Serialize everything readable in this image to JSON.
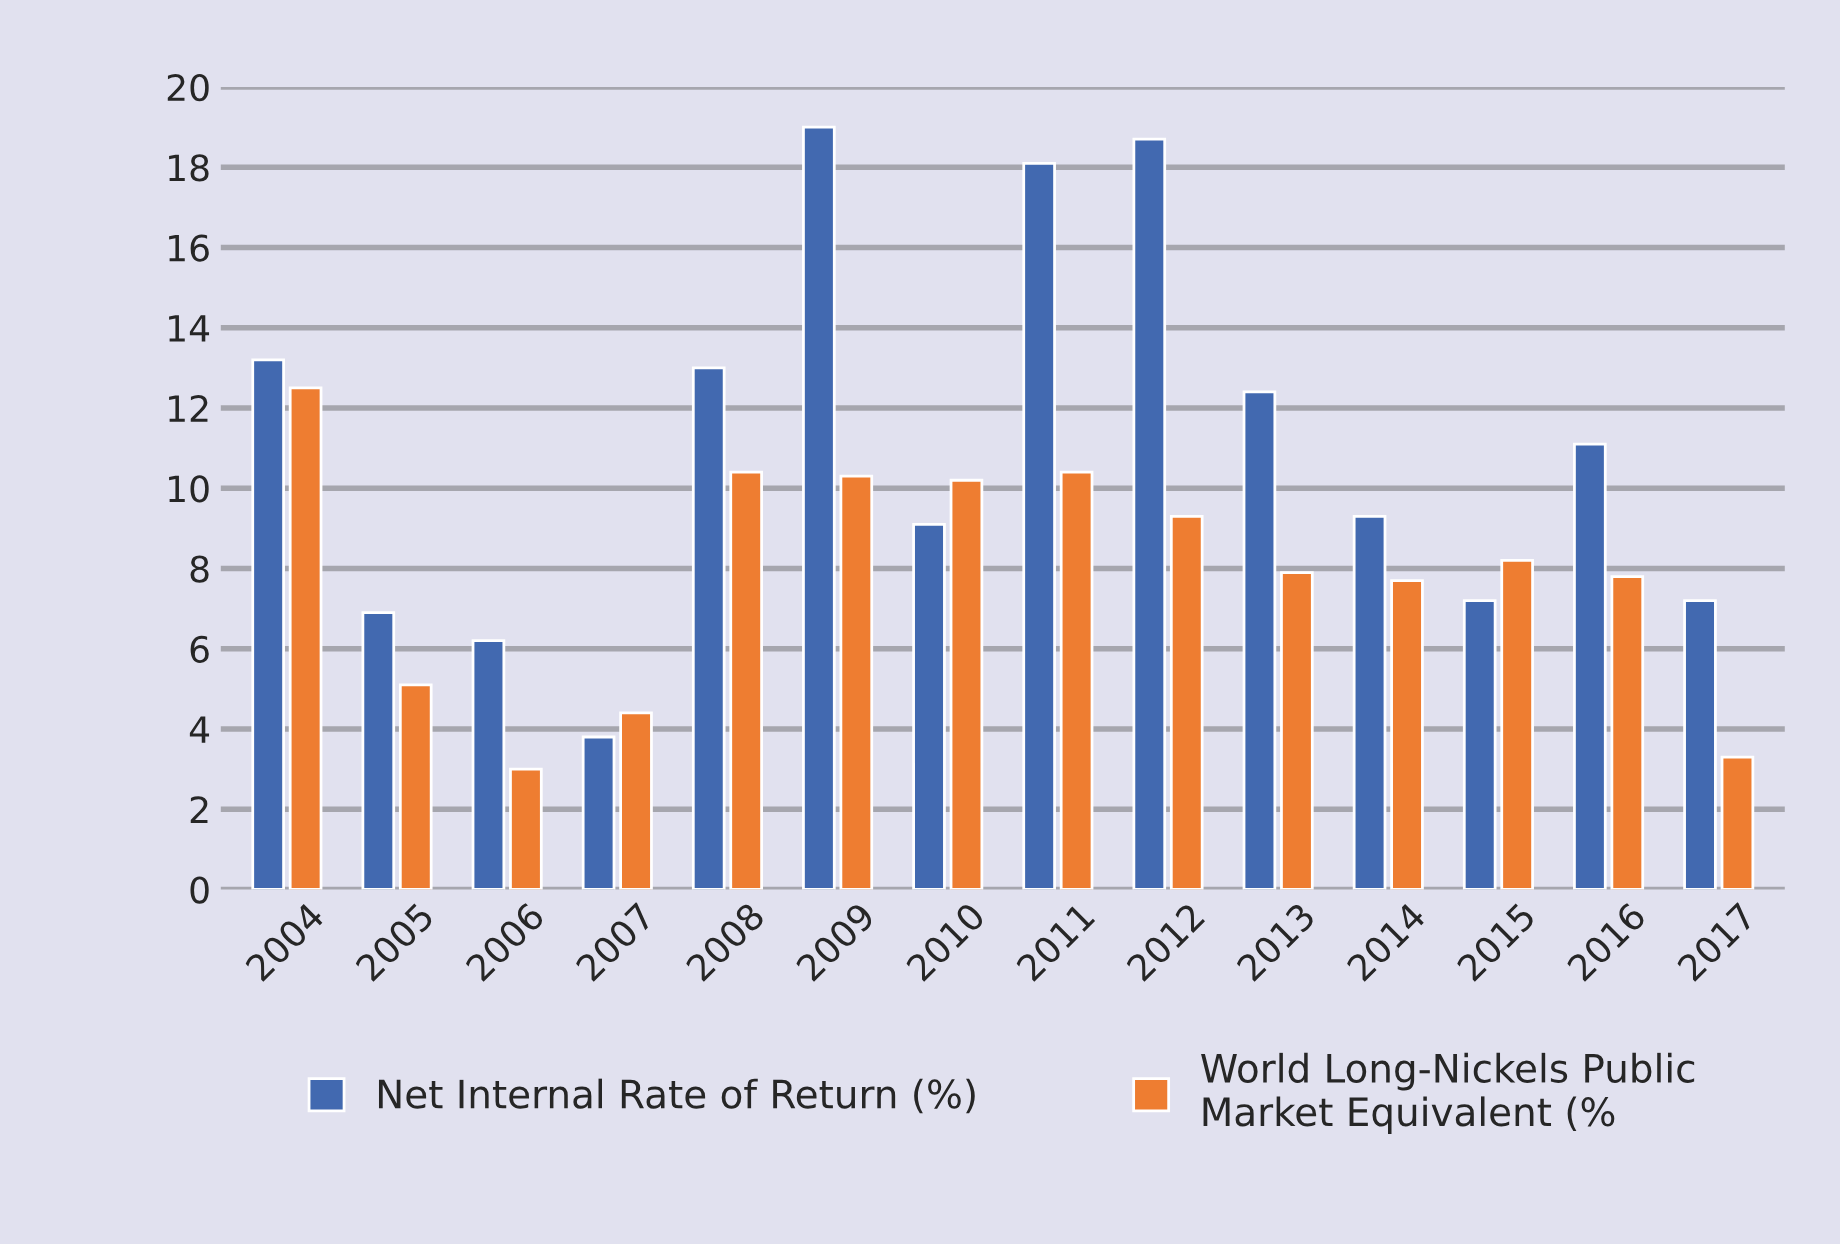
{
  "chart_data": {
    "type": "bar",
    "categories": [
      "2004",
      "2005",
      "2006",
      "2007",
      "2008",
      "2009",
      "2010",
      "2011",
      "2012",
      "2013",
      "2014",
      "2015",
      "2016",
      "2017"
    ],
    "series": [
      {
        "name": "Net Internal Rate of Return (%)",
        "color": "#4269b0",
        "values": [
          13.2,
          6.9,
          6.2,
          3.8,
          13.0,
          19.0,
          9.1,
          18.1,
          18.7,
          12.4,
          9.3,
          7.2,
          11.1,
          7.2
        ]
      },
      {
        "name": "World Long-Nickels Public\nMarket Equivalent (%",
        "color": "#ee7d31",
        "values": [
          12.5,
          5.1,
          3.0,
          4.4,
          10.4,
          10.3,
          10.2,
          10.4,
          9.3,
          7.9,
          7.7,
          8.2,
          7.8,
          3.3
        ]
      }
    ],
    "ylim": [
      0,
      20
    ],
    "yticks": [
      0,
      2,
      4,
      6,
      8,
      10,
      12,
      14,
      16,
      18,
      20
    ],
    "grid": "y",
    "legend": "bottom"
  }
}
